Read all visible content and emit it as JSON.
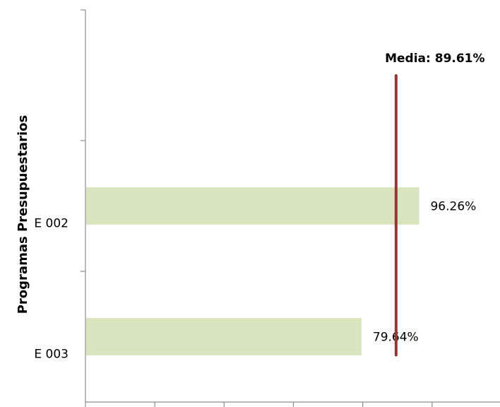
{
  "chart_data": {
    "type": "bar",
    "orientation": "horizontal",
    "ylabel": "Programas Presupuestarios",
    "categories": [
      "E 002",
      "E 003"
    ],
    "values": [
      96.26,
      79.64
    ],
    "value_labels": [
      "96.26%",
      "79.64%"
    ],
    "xlim": [
      0,
      120
    ],
    "x_tick_labels_shown": false,
    "mean": {
      "value": 89.61,
      "label": "Media: 89.61%"
    },
    "grid": false,
    "legend": "none",
    "colors": {
      "bar": "#d7e4bd",
      "mean_line": "#953735",
      "axis": "#8c8c8c"
    }
  }
}
